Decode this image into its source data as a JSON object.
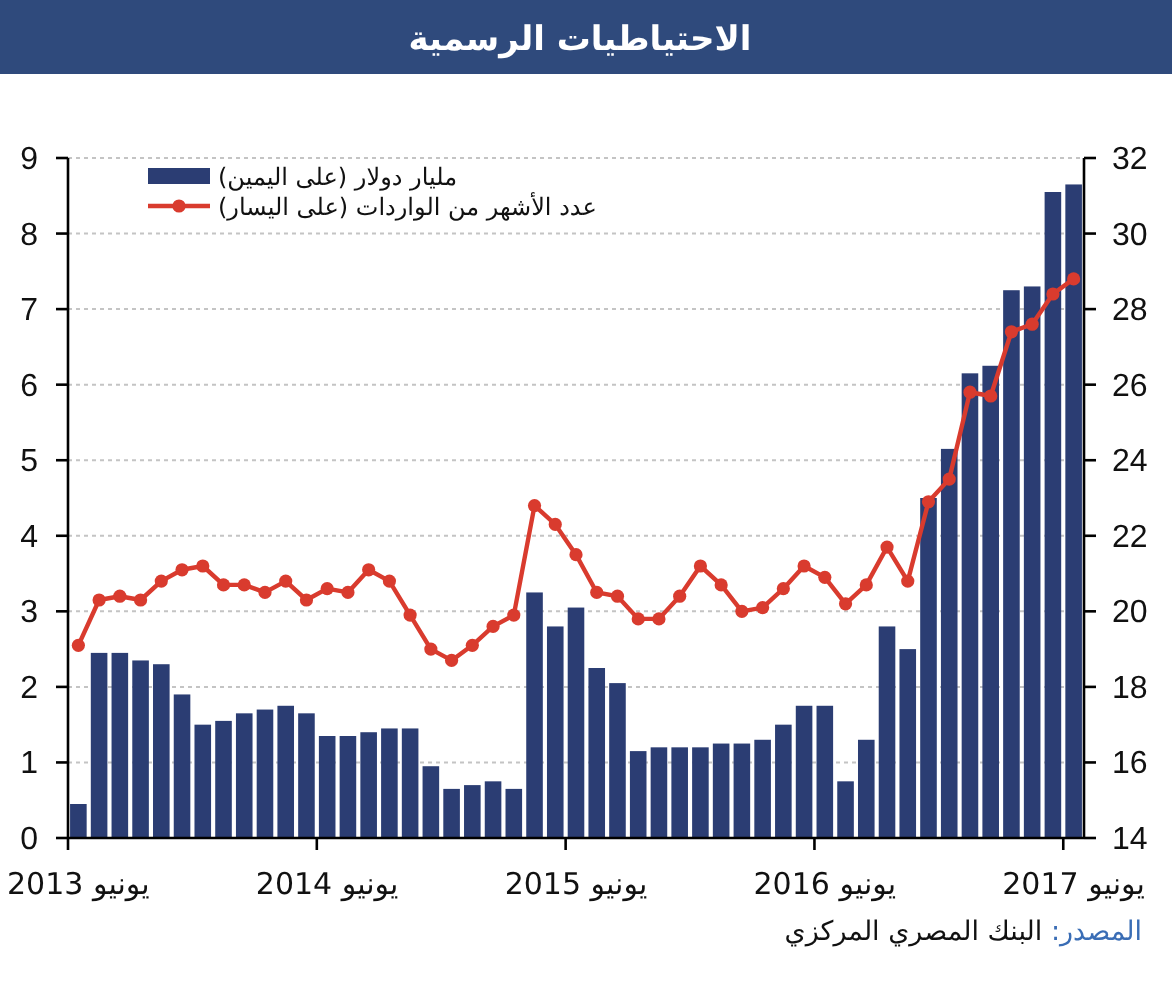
{
  "chart_data": {
    "type": "bar",
    "title": "الاحتياطيات الرسمية",
    "categories": [
      "يونيو 2013",
      null,
      null,
      null,
      null,
      null,
      null,
      null,
      null,
      null,
      null,
      null,
      "يونيو 2014",
      null,
      null,
      null,
      null,
      null,
      null,
      null,
      null,
      null,
      null,
      null,
      "يونيو 2015",
      null,
      null,
      null,
      null,
      null,
      null,
      null,
      null,
      null,
      null,
      null,
      "يونيو 2016",
      null,
      null,
      null,
      null,
      null,
      null,
      null,
      null,
      null,
      null,
      null,
      "يونيو 2017"
    ],
    "ylim": [
      0,
      9
    ],
    "yticks": [
      0,
      1,
      2,
      3,
      4,
      5,
      6,
      7,
      8,
      9
    ],
    "y2lim": [
      14,
      32
    ],
    "y2ticks": [
      14,
      16,
      18,
      20,
      22,
      24,
      26,
      28,
      30,
      32
    ],
    "grid": "y",
    "legend": "top left",
    "marker": "circle",
    "series": [
      {
        "name": "مليار دولار (على اليمين)",
        "axis": "y2",
        "color": "#2b3d73",
        "values": [
          14.9,
          18.9,
          18.9,
          18.7,
          18.6,
          17.8,
          17.0,
          17.1,
          17.3,
          17.4,
          17.5,
          17.3,
          16.7,
          16.7,
          16.8,
          16.9,
          16.9,
          15.9,
          15.3,
          15.4,
          15.5,
          15.3,
          20.5,
          19.6,
          20.1,
          18.5,
          18.1,
          16.3,
          16.4,
          16.4,
          16.4,
          16.5,
          16.5,
          16.6,
          17.0,
          17.5,
          17.5,
          15.5,
          16.6,
          19.6,
          19.0,
          23.0,
          24.3,
          26.3,
          26.5,
          28.5,
          28.6,
          31.1,
          31.3
        ]
      },
      {
        "name": "عدد الأشهر من الواردات (على اليسار)",
        "type": "line",
        "axis": "y",
        "color": "#d93b2e",
        "values": [
          2.55,
          3.15,
          3.2,
          3.15,
          3.4,
          3.55,
          3.6,
          3.35,
          3.35,
          3.25,
          3.4,
          3.15,
          3.3,
          3.25,
          3.55,
          3.4,
          2.95,
          2.5,
          2.35,
          2.55,
          2.8,
          2.95,
          4.4,
          4.15,
          3.75,
          3.25,
          3.2,
          2.9,
          2.9,
          3.2,
          3.6,
          3.35,
          3.0,
          3.05,
          3.3,
          3.6,
          3.45,
          3.1,
          3.35,
          3.85,
          3.4,
          4.45,
          4.75,
          5.9,
          5.85,
          6.7,
          6.8,
          7.2,
          7.4
        ]
      }
    ],
    "annotations": [
      "المصدر: البنك المصري المركزي"
    ]
  }
}
